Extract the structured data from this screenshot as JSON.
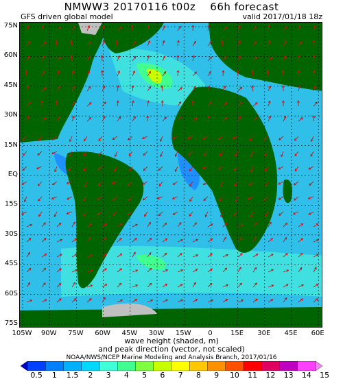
{
  "header": {
    "title": "NMWW3 20170116 t00z    66h forecast",
    "subtitle_left": "GFS driven global model",
    "subtitle_right": "valid 2017/01/18 18z"
  },
  "axes": {
    "lat_labels": [
      "75N",
      "60N",
      "45N",
      "30N",
      "15N",
      "EQ",
      "15S",
      "30S",
      "45S",
      "60S",
      "75S"
    ],
    "lon_labels": [
      "105W",
      "90W",
      "75W",
      "60W",
      "45W",
      "30W",
      "15W",
      "0",
      "15E",
      "30E",
      "45E",
      "60E"
    ]
  },
  "footer": {
    "line1": "wave height (shaded, m)",
    "line2": "and peak direction (vector, not scaled)",
    "credit": "NOAA/NWS/NCEP Marine Modeling and Analysis Branch, 2017/01/16"
  },
  "colorbar": {
    "labels": [
      "0.5",
      "1",
      "1.5",
      "2",
      "3",
      "4",
      "5",
      "6",
      "7",
      "8",
      "9",
      "10",
      "11",
      "12",
      "13",
      "14",
      "15"
    ],
    "colors": [
      "#0000c8",
      "#0040ff",
      "#0080ff",
      "#00b0ff",
      "#00d8ff",
      "#40ffd8",
      "#40ff90",
      "#80ff40",
      "#c8ff00",
      "#ffff00",
      "#ffc800",
      "#ff9000",
      "#ff5000",
      "#ff0000",
      "#e00060",
      "#c000c0",
      "#ff40ff",
      "#ff80ff"
    ]
  },
  "map_colors": {
    "ocean": "#2fbfe8",
    "ocean_light": "#40e0e0",
    "ocean_dark": "#1e90ff",
    "land": "#006400",
    "ice": "#c0c0c0",
    "grid": "#000000",
    "arrows": "#d01010"
  }
}
